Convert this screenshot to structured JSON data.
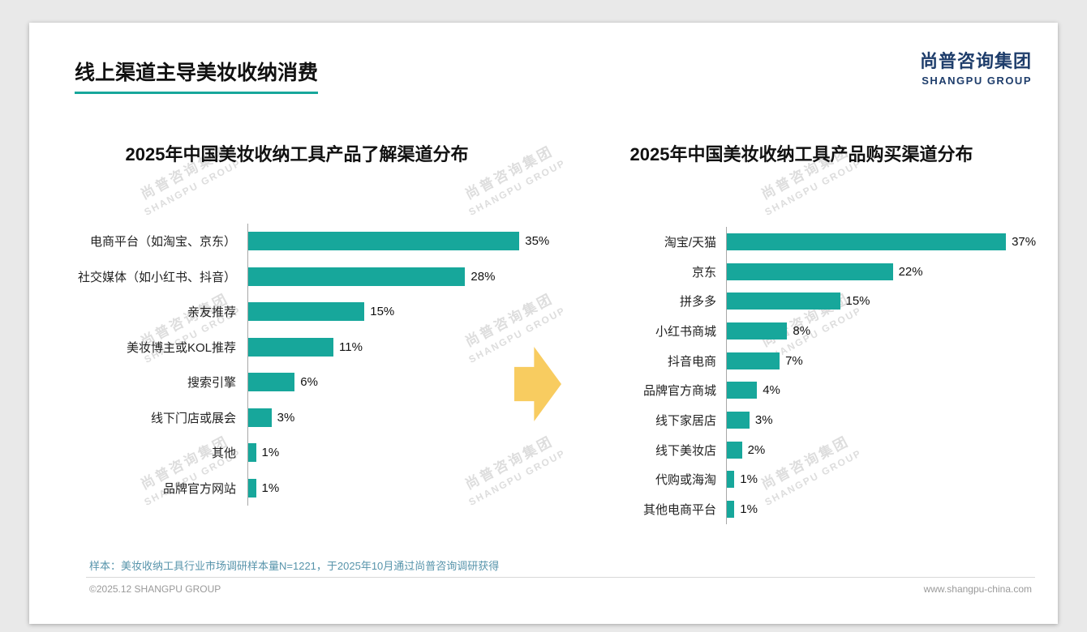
{
  "slide": {
    "title": "线上渠道主导美妆收纳消费",
    "logo": {
      "cn": "尚普咨询集团",
      "en": "SHANGPU GROUP"
    },
    "watermark_cn": "尚普咨询集团",
    "watermark_en": "SHANGPU GROUP",
    "sample_note": "样本：美妆收纳工具行业市场调研样本量N=1221，于2025年10月通过尚普咨询调研获得",
    "footer_left": "©2025.12 SHANGPU GROUP",
    "footer_right": "www.shangpu-china.com"
  },
  "colors": {
    "bar_teal": "#17A79B",
    "arrow_yellow": "#F8CC60",
    "logo_blue": "#1E3D6B",
    "title_underline": "#17A79B",
    "note_blue": "#5794AB"
  },
  "chart_data": [
    {
      "type": "bar",
      "orientation": "horizontal",
      "title": "2025年中国美妆收纳工具产品了解渠道分布",
      "categories": [
        "电商平台（如淘宝、京东）",
        "社交媒体（如小红书、抖音）",
        "亲友推荐",
        "美妆博主或KOL推荐",
        "搜索引擎",
        "线下门店或展会",
        "其他",
        "品牌官方网站"
      ],
      "values": [
        35,
        28,
        15,
        11,
        6,
        3,
        1,
        1
      ],
      "unit": "%",
      "xlim": [
        0,
        40
      ],
      "grid": false,
      "legend": false
    },
    {
      "type": "bar",
      "orientation": "horizontal",
      "title": "2025年中国美妆收纳工具产品购买渠道分布",
      "categories": [
        "淘宝/天猫",
        "京东",
        "拼多多",
        "小红书商城",
        "抖音电商",
        "品牌官方商城",
        "线下家居店",
        "线下美妆店",
        "代购或海淘",
        "其他电商平台"
      ],
      "values": [
        37,
        22,
        15,
        8,
        7,
        4,
        3,
        2,
        1,
        1
      ],
      "unit": "%",
      "xlim": [
        0,
        40
      ],
      "grid": false,
      "legend": false
    }
  ]
}
